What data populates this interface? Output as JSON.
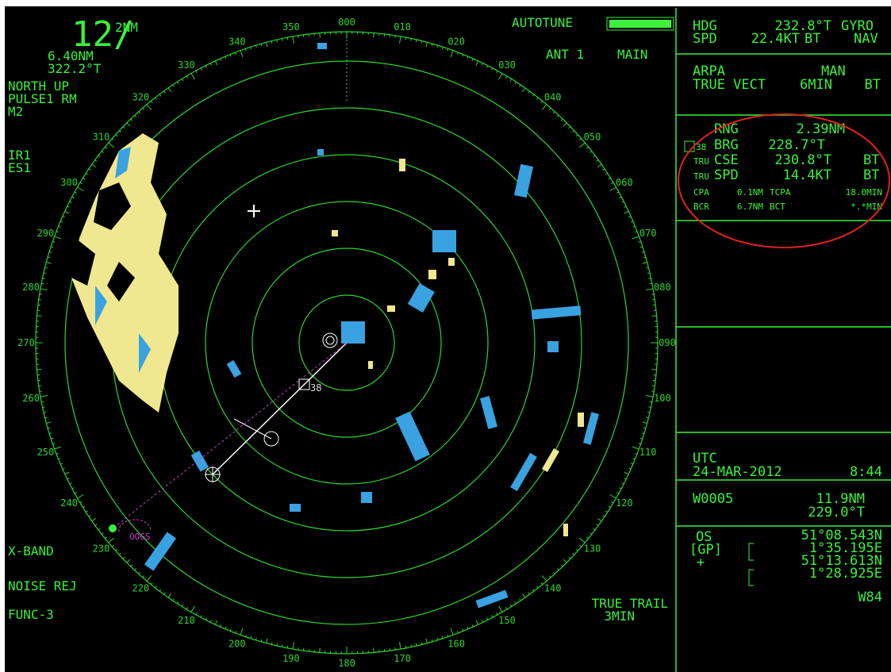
{
  "display": {
    "range": "12/",
    "range_interval": "2NM",
    "vrm": "6.40NM",
    "ebl": "322.2°T",
    "orientation": "NORTH UP",
    "pulse_mode": "PULSE1 RM",
    "mode_2": "M2",
    "interference_rejection": "IR1",
    "echo_stretch": "ES1",
    "band": "X-BAND",
    "noise_rejection": "NOISE REJ",
    "function_key": "FUNC-3",
    "tune": "AUTOTUNE",
    "antenna": "ANT 1",
    "antenna_mode": "MAIN",
    "trail_mode": "TRUE TRAIL",
    "trail_time": "3MIN",
    "target_number": "38",
    "waypoint_tag": "OOGS",
    "bearing_labels": [
      "000",
      "010",
      "020",
      "030",
      "040",
      "050",
      "060",
      "070",
      "080",
      "090",
      "100",
      "110",
      "120",
      "130",
      "140",
      "150",
      "160",
      "170",
      "180",
      "190",
      "200",
      "210",
      "220",
      "230",
      "240",
      "250",
      "260",
      "270",
      "280",
      "290",
      "300",
      "310",
      "320",
      "330",
      "340",
      "350"
    ]
  },
  "own_ship": {
    "hdg_label": "HDG",
    "hdg_value": "232.8°T",
    "hdg_source": "GYRO",
    "spd_label": "SPD",
    "spd_value": "22.4KT",
    "spd_mode": "BT",
    "spd_source": "NAV"
  },
  "arpa": {
    "label": "ARPA",
    "mode": "MAN",
    "vector": "TRUE VECT",
    "vector_time": "6MIN",
    "vector_mode": "BT"
  },
  "target": {
    "rng_label": "RNG",
    "rng_value": "2.39NM",
    "id": "38",
    "brg_label": "BRG",
    "brg_value": "228.7°T",
    "cse_prefix": "TRU",
    "cse_label": "CSE",
    "cse_value": "230.8°T",
    "cse_mode": "BT",
    "spd_prefix": "TRU",
    "spd_label": "SPD",
    "spd_value": "14.4KT",
    "spd_mode": "BT",
    "cpa_label": "CPA",
    "cpa_value": "0.1NM",
    "tcpa_label": "TCPA",
    "tcpa_value": "18.0MIN",
    "bcr_label": "BCR",
    "bcr_value": "6.7NM",
    "bct_label": "BCT",
    "bct_value": "*.*MIN"
  },
  "time": {
    "label": "UTC",
    "date": "24-MAR-2012",
    "clock": "8:44"
  },
  "waypoint": {
    "id": "W0005",
    "distance": "11.9NM",
    "bearing": "229.0°T"
  },
  "position": {
    "label": "OS",
    "source": "[GP]",
    "cursor": "+",
    "own_lat": "51°08.543N",
    "own_lon": "1°35.195E",
    "cursor_lat": "51°13.613N",
    "cursor_lon": "1°28.925E",
    "datum": "W84"
  }
}
